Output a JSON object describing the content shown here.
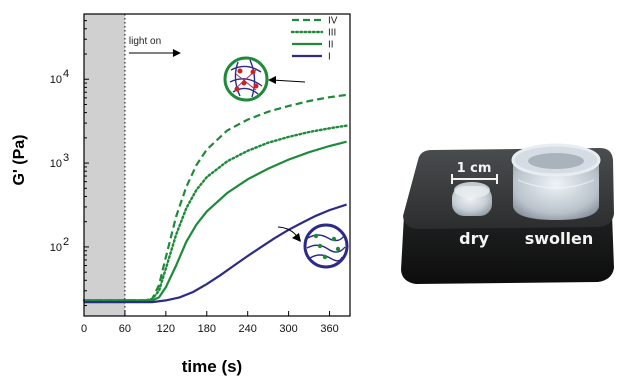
{
  "chart_data": {
    "type": "line",
    "xlabel": "time (s)",
    "ylabel": "G' (Pa)",
    "x_ticks": [
      "0",
      "60",
      "120",
      "180",
      "240",
      "300",
      "360"
    ],
    "y_ticks": [
      {
        "base": "10",
        "exp": "2",
        "value": 100
      },
      {
        "base": "10",
        "exp": "3",
        "value": 1000
      },
      {
        "base": "10",
        "exp": "4",
        "value": 10000
      }
    ],
    "xlim": [
      0,
      390
    ],
    "ylim": [
      15,
      60000
    ],
    "yscale": "log",
    "grid": false,
    "legend_position": "top-right",
    "annotation": "light on",
    "light_on_time": 60,
    "shaded_region": [
      0,
      60
    ],
    "series": [
      {
        "name": "IV",
        "style": "dashed",
        "color": "#1e8a3a",
        "x": [
          0,
          60,
          90,
          100,
          110,
          120,
          135,
          150,
          165,
          180,
          210,
          240,
          270,
          300,
          330,
          360,
          385
        ],
        "y": [
          23,
          23,
          23,
          24,
          35,
          75,
          230,
          520,
          950,
          1450,
          2450,
          3300,
          4100,
          4800,
          5500,
          6100,
          6500
        ]
      },
      {
        "name": "III",
        "style": "dotted",
        "color": "#1e8a3a",
        "x": [
          0,
          60,
          90,
          100,
          110,
          120,
          135,
          150,
          165,
          180,
          210,
          240,
          270,
          300,
          330,
          360,
          385
        ],
        "y": [
          23,
          23,
          23,
          24,
          30,
          55,
          140,
          290,
          480,
          680,
          1050,
          1400,
          1750,
          2050,
          2350,
          2600,
          2800
        ]
      },
      {
        "name": "II",
        "style": "solid",
        "color": "#1e8a3a",
        "x": [
          0,
          60,
          100,
          110,
          120,
          135,
          150,
          165,
          180,
          210,
          240,
          270,
          300,
          330,
          360,
          385
        ],
        "y": [
          23,
          23,
          23,
          25,
          33,
          60,
          115,
          185,
          265,
          440,
          640,
          860,
          1100,
          1350,
          1600,
          1800
        ]
      },
      {
        "name": "I",
        "style": "solid",
        "color": "#2c2c86",
        "x": [
          0,
          60,
          100,
          120,
          140,
          160,
          180,
          200,
          220,
          240,
          260,
          280,
          300,
          320,
          340,
          360,
          385
        ],
        "y": [
          22,
          22,
          22,
          23,
          25,
          29,
          36,
          46,
          60,
          78,
          100,
          128,
          160,
          195,
          235,
          275,
          320
        ]
      }
    ]
  },
  "photo": {
    "scale_bar_label": "1 cm",
    "dry_label": "dry",
    "swollen_label": "swollen"
  }
}
